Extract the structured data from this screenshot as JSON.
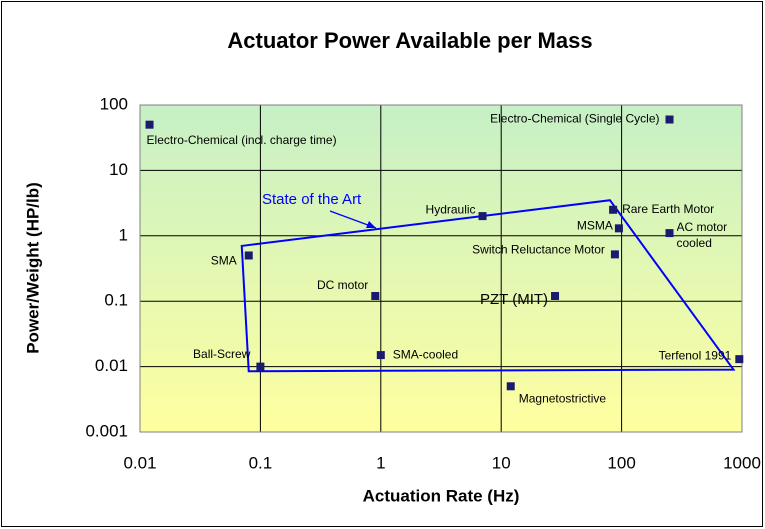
{
  "chart_data": {
    "type": "scatter",
    "title": "Actuator Power Available per Mass",
    "xlabel": "Actuation Rate (Hz)",
    "ylabel": "Power/Weight (HP/lb)",
    "xscale": "log",
    "yscale": "log",
    "xlim": [
      0.01,
      1000
    ],
    "ylim": [
      0.001,
      100
    ],
    "xticks": [
      0.01,
      0.1,
      1,
      10,
      100,
      1000
    ],
    "yticks": [
      0.001,
      0.01,
      0.1,
      1,
      10,
      100
    ],
    "grid": true,
    "color": "#1a1a6e",
    "points": [
      {
        "name": "Electro-Chemical (incl. charge time)",
        "x": 0.012,
        "y": 50
      },
      {
        "name": "Electro-Chemical (Single Cycle)",
        "x": 250,
        "y": 60
      },
      {
        "name": "Hydraulic",
        "x": 7,
        "y": 2
      },
      {
        "name": "Rare Earth Motor",
        "x": 85,
        "y": 2.5
      },
      {
        "name": "MSMA",
        "x": 95,
        "y": 1.3
      },
      {
        "name": "AC motor cooled",
        "x": 250,
        "y": 1.1
      },
      {
        "name": "Switch Reluctance Motor",
        "x": 88,
        "y": 0.52
      },
      {
        "name": "SMA",
        "x": 0.08,
        "y": 0.5
      },
      {
        "name": "DC motor",
        "x": 0.9,
        "y": 0.12
      },
      {
        "name": "PZT (MIT)",
        "x": 28,
        "y": 0.12
      },
      {
        "name": "Ball-Screw",
        "x": 0.1,
        "y": 0.01
      },
      {
        "name": "SMA-cooled",
        "x": 1,
        "y": 0.015
      },
      {
        "name": "Magnetostrictive",
        "x": 12,
        "y": 0.005
      },
      {
        "name": "Terfenol 1991",
        "x": 950,
        "y": 0.013
      }
    ],
    "region": {
      "name": "State of the Art",
      "color": "#0000ff",
      "x": [
        0.07,
        80,
        850,
        0.08
      ],
      "y": [
        0.7,
        3.5,
        0.009,
        0.0085
      ]
    }
  }
}
